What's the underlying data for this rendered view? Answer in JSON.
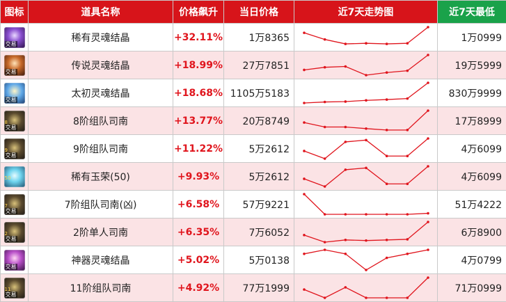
{
  "headers": {
    "icon": "图标",
    "name": "道具名称",
    "change": "价格飙升",
    "price": "当日价格",
    "trend": "近7天走势图",
    "low": "近7天最低"
  },
  "colors": {
    "header": "#d7141a",
    "header_low": "#1aa24a",
    "trend_line": "#e0151d",
    "change_text": "#e0151d",
    "alt_row": "#fbe3e5"
  },
  "rows": [
    {
      "icon": "rare-soul-crystal-icon",
      "tag": "交易",
      "name": "稀有灵魂结晶",
      "change": "+32.11%",
      "price": "1万8365",
      "low": "1万0999",
      "trend": [
        0.72,
        0.39,
        0.17,
        0.2,
        0.17,
        0.2,
        1.0
      ]
    },
    {
      "icon": "legend-soul-crystal-icon",
      "tag": "交易",
      "name": "传说灵魂结晶",
      "change": "+18.99%",
      "price": "27万7851",
      "low": "19万5999",
      "trend": [
        0.26,
        0.39,
        0.43,
        0.0,
        0.13,
        0.22,
        1.0
      ]
    },
    {
      "icon": "primal-soul-crystal-icon",
      "tag": "交易",
      "name": "太初灵魂结晶",
      "change": "+18.68%",
      "price": "1105万5183",
      "low": "830万9999",
      "trend": [
        0.0,
        0.05,
        0.07,
        0.13,
        0.17,
        0.22,
        1.0
      ]
    },
    {
      "icon": "compass-8-icon",
      "tag": "交易",
      "num": "8",
      "name": "8阶组队司南",
      "change": "+13.77%",
      "price": "20万8749",
      "low": "17万8999",
      "trend": [
        0.41,
        0.19,
        0.19,
        0.11,
        0.04,
        0.04,
        1.0
      ]
    },
    {
      "icon": "compass-9-icon",
      "tag": "交易",
      "num": "9",
      "name": "9阶组队司南",
      "change": "+11.22%",
      "price": "5万2612",
      "low": "4万6099",
      "trend": [
        0.38,
        0.0,
        0.83,
        0.92,
        0.13,
        0.13,
        1.0
      ]
    },
    {
      "icon": "rare-jade-icon",
      "tag": "",
      "num": "50",
      "name": "稀有玉荣(50)",
      "change": "+9.93%",
      "price": "5万2612",
      "low": "4万6099",
      "trend": [
        0.38,
        0.0,
        0.83,
        0.92,
        0.13,
        0.13,
        1.0
      ]
    },
    {
      "icon": "compass-7-icon",
      "tag": "交易",
      "num": "7",
      "name": "7阶组队司南(凶)",
      "change": "+6.58%",
      "price": "57万9221",
      "low": "51万4222",
      "trend": [
        1.0,
        0.0,
        0.0,
        0.0,
        0.0,
        0.0,
        0.05
      ]
    },
    {
      "icon": "compass-2-icon",
      "tag": "交易",
      "num": "2",
      "name": "2阶单人司南",
      "change": "+6.35%",
      "price": "7万6052",
      "low": "6万8900",
      "trend": [
        0.35,
        0.0,
        0.11,
        0.08,
        0.11,
        0.14,
        1.0
      ]
    },
    {
      "icon": "artifact-soul-crystal-icon",
      "tag": "交易",
      "name": "神器灵魂结晶",
      "change": "+5.02%",
      "price": "5万0138",
      "low": "4万0799",
      "trend": [
        0.8,
        1.0,
        0.8,
        0.0,
        0.6,
        0.8,
        1.0
      ]
    },
    {
      "icon": "compass-11-icon",
      "tag": "交易",
      "num": "11",
      "name": "11阶组队司南",
      "change": "+4.92%",
      "price": "77万1999",
      "low": "71万0999",
      "trend": [
        0.41,
        0.0,
        0.52,
        0.0,
        0.0,
        0.0,
        1.0
      ]
    }
  ]
}
